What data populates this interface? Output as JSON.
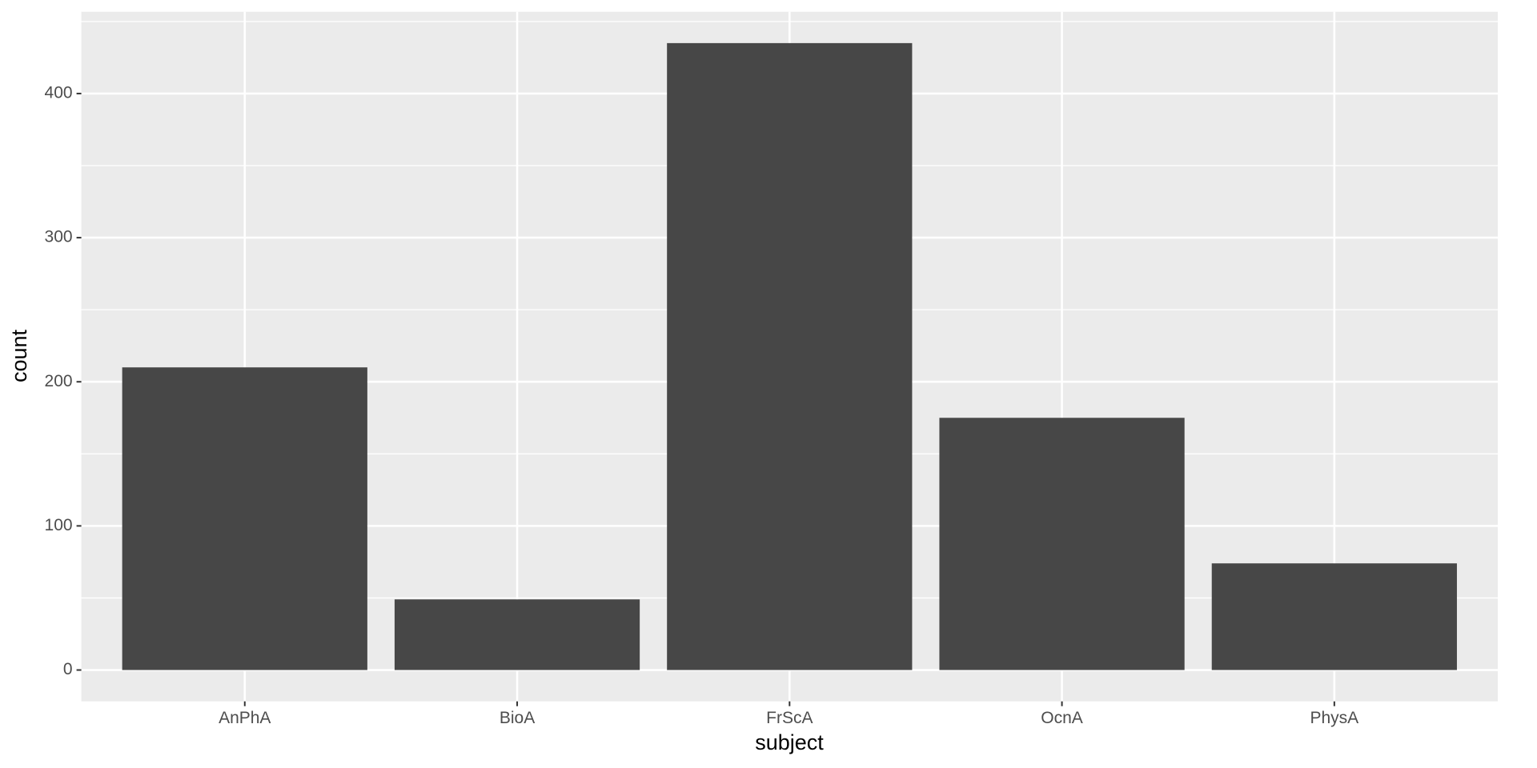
{
  "chart_data": {
    "type": "bar",
    "x_label": "subject",
    "y_label": "count",
    "categories": [
      "AnPhA",
      "BioA",
      "FrScA",
      "OcnA",
      "PhysA"
    ],
    "values": [
      210,
      49,
      435,
      175,
      74
    ],
    "color": "#474747",
    "ylim": [
      -21.75,
      456.75
    ],
    "yticks": [
      0,
      100,
      200,
      300,
      400
    ],
    "minor_yticks": [
      50,
      150,
      250,
      350,
      450
    ],
    "grid": true
  }
}
